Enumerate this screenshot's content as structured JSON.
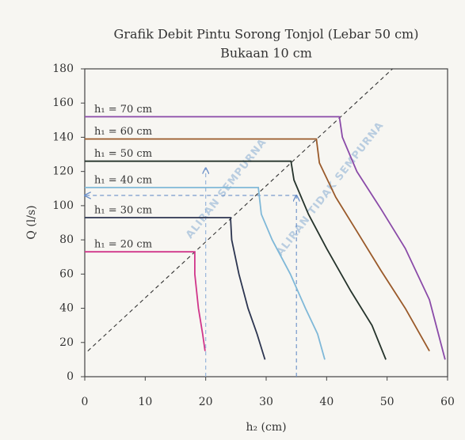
{
  "chart_data": {
    "type": "line",
    "title": "Grafik Debit Pintu Sorong Tonjol (Lebar  50 cm)",
    "subtitle": "Bukaan 10 cm",
    "x_label": "h₂ (cm)",
    "y_label": "Q (l/s)",
    "xlim": [
      0,
      60
    ],
    "xticks": [
      0,
      10,
      20,
      30,
      40,
      50,
      60
    ],
    "ylim": [
      0,
      180
    ],
    "yticks": [
      0,
      20,
      40,
      60,
      80,
      100,
      120,
      140,
      160,
      180
    ],
    "grid": false,
    "series": [
      {
        "name": "h₁ = 20 cm",
        "color": "#d0358a",
        "x": [
          0,
          18.2,
          18.2,
          18.8,
          19.5,
          19.9
        ],
        "values": [
          73,
          73,
          60,
          40,
          25,
          15
        ]
      },
      {
        "name": "h₁ = 30 cm",
        "color": "#2c3550",
        "x": [
          0,
          24.1,
          24.3,
          25.5,
          27,
          28.5,
          29.8
        ],
        "values": [
          93,
          93,
          80,
          60,
          40,
          25,
          10
        ]
      },
      {
        "name": "h₁ = 40 cm",
        "color": "#7fb8d8",
        "x": [
          0,
          28.7,
          29.2,
          31,
          34,
          36.5,
          38.5,
          39.7
        ],
        "values": [
          110.6,
          110.6,
          95,
          80,
          60,
          40,
          25,
          10
        ]
      },
      {
        "name": "h₁ = 50 cm",
        "color": "#25332b",
        "x": [
          0,
          34.1,
          34.6,
          37,
          40,
          44,
          47.5,
          49.8
        ],
        "values": [
          126,
          126,
          115,
          95,
          75,
          50,
          30,
          10
        ]
      },
      {
        "name": "h₁ = 60 cm",
        "color": "#9a5a2a",
        "x": [
          0,
          38.3,
          38.8,
          41.5,
          45,
          49,
          53,
          57
        ],
        "values": [
          139,
          139,
          125,
          105,
          85,
          62,
          40,
          15
        ]
      },
      {
        "name": "h₁ = 70 cm",
        "color": "#8a4aa8",
        "x": [
          0,
          42.1,
          42.6,
          45,
          49,
          53,
          57,
          59.6
        ],
        "values": [
          152,
          152,
          140,
          120,
          98,
          75,
          45,
          10
        ]
      }
    ],
    "reference_lines": [
      {
        "color": "#333333",
        "x": [
          0.5,
          50.9
        ],
        "values": [
          15,
          180
        ]
      },
      {
        "color": "#6a8fc8",
        "x": [
          35,
          0
        ],
        "values": [
          106,
          106
        ]
      },
      {
        "color": "#8fb0d8",
        "x": [
          20,
          20
        ],
        "values": [
          0,
          122
        ]
      },
      {
        "color": "#6a8fc8",
        "x": [
          35,
          35
        ],
        "values": [
          0,
          106
        ]
      }
    ],
    "annotations": [
      "ALIRAN SEMPURNA",
      "ALIRAN TIDAK SEMPURNA"
    ]
  }
}
